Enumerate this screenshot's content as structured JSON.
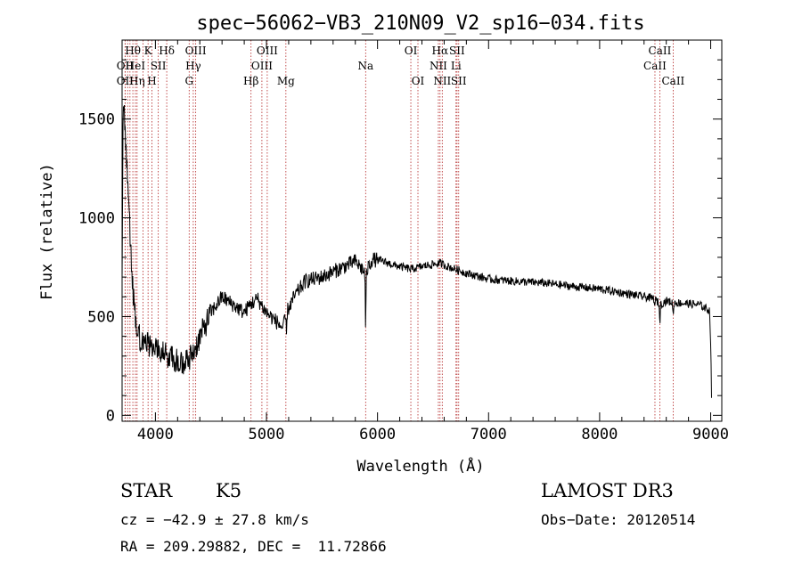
{
  "chart_data": {
    "type": "line",
    "title": "spec−56062−VB3_210N09_V2_sp16−034.fits",
    "xlabel": "Wavelength (Å)",
    "ylabel": "Flux (relative)",
    "xlim": [
      3700,
      9100
    ],
    "ylim": [
      -30,
      1900
    ],
    "x_ticks": [
      4000,
      5000,
      6000,
      7000,
      8000,
      9000
    ],
    "x_tick_labels": [
      "4000",
      "5000",
      "6000",
      "7000",
      "8000",
      "9000"
    ],
    "y_ticks": [
      0,
      500,
      1000,
      1500
    ],
    "y_tick_labels": [
      "0",
      "500",
      "1000",
      "1500"
    ],
    "line_color": "#000000",
    "marker_color": "#b22222",
    "spectrum_anchors": {
      "x": [
        3700,
        3710,
        3730,
        3750,
        3780,
        3800,
        3830,
        3870,
        3920,
        4000,
        4100,
        4200,
        4270,
        4350,
        4420,
        4500,
        4600,
        4700,
        4800,
        4850,
        4920,
        5000,
        5080,
        5150,
        5180,
        5250,
        5350,
        5500,
        5650,
        5800,
        5893,
        5950,
        6050,
        6150,
        6300,
        6450,
        6563,
        6650,
        6800,
        7000,
        7200,
        7500,
        7800,
        8000,
        8200,
        8400,
        8500,
        8542,
        8600,
        8662,
        8700,
        8900,
        8990,
        9000,
        9010
      ],
      "y": [
        700,
        1650,
        1400,
        1200,
        800,
        600,
        450,
        380,
        360,
        340,
        300,
        280,
        260,
        330,
        420,
        520,
        600,
        560,
        520,
        560,
        590,
        520,
        480,
        440,
        520,
        600,
        680,
        700,
        740,
        780,
        720,
        790,
        780,
        760,
        740,
        760,
        770,
        750,
        720,
        690,
        680,
        670,
        650,
        640,
        620,
        600,
        590,
        560,
        580,
        570,
        570,
        560,
        530,
        380,
        30
      ]
    },
    "absorption_dips": [
      {
        "x": 5893,
        "depth": 270
      },
      {
        "x": 5180,
        "depth": 120
      },
      {
        "x": 8542,
        "depth": 90
      },
      {
        "x": 8662,
        "depth": 70
      },
      {
        "x": 8498,
        "depth": 40
      }
    ],
    "noise_amplitude": 30,
    "line_markers": [
      {
        "wavelength": 3727,
        "label": "OII",
        "row": 1
      },
      {
        "wavelength": 3727,
        "label": "OII",
        "row": 2
      },
      {
        "wavelength": 3750,
        "label": "",
        "row": 0
      },
      {
        "wavelength": 3771,
        "label": "",
        "row": 0
      },
      {
        "wavelength": 3797,
        "label": "Hθ",
        "row": 0
      },
      {
        "wavelength": 3820,
        "label": "HeI",
        "row": 1
      },
      {
        "wavelength": 3835,
        "label": "Hη",
        "row": 2
      },
      {
        "wavelength": 3889,
        "label": "",
        "row": 0
      },
      {
        "wavelength": 3934,
        "label": "K",
        "row": 0
      },
      {
        "wavelength": 3969,
        "label": "H",
        "row": 2
      },
      {
        "wavelength": 4026,
        "label": "SII",
        "row": 1
      },
      {
        "wavelength": 4102,
        "label": "Hδ",
        "row": 0
      },
      {
        "wavelength": 4304,
        "label": "G",
        "row": 2
      },
      {
        "wavelength": 4341,
        "label": "Hγ",
        "row": 1
      },
      {
        "wavelength": 4363,
        "label": "OIII",
        "row": 0
      },
      {
        "wavelength": 4861,
        "label": "Hβ",
        "row": 2
      },
      {
        "wavelength": 4959,
        "label": "OIII",
        "row": 1
      },
      {
        "wavelength": 5007,
        "label": "OIII",
        "row": 0
      },
      {
        "wavelength": 5175,
        "label": "Mg",
        "row": 2
      },
      {
        "wavelength": 5893,
        "label": "Na",
        "row": 1
      },
      {
        "wavelength": 6300,
        "label": "OI",
        "row": 0
      },
      {
        "wavelength": 6364,
        "label": "OI",
        "row": 2
      },
      {
        "wavelength": 6548,
        "label": "NII",
        "row": 1
      },
      {
        "wavelength": 6563,
        "label": "Hα",
        "row": 0
      },
      {
        "wavelength": 6583,
        "label": "NII",
        "row": 2
      },
      {
        "wavelength": 6707,
        "label": "Li",
        "row": 1
      },
      {
        "wavelength": 6716,
        "label": "SII",
        "row": 0
      },
      {
        "wavelength": 6731,
        "label": "SII",
        "row": 2
      },
      {
        "wavelength": 8498,
        "label": "CaII",
        "row": 1
      },
      {
        "wavelength": 8542,
        "label": "CaII",
        "row": 0
      },
      {
        "wavelength": 8662,
        "label": "CaII",
        "row": 2
      }
    ]
  },
  "info": {
    "object_class": "STAR",
    "subclass": "K5",
    "redshift_line": "cz = −42.9 ± 27.8 km/s",
    "coords_line": "RA = 209.29882, DEC =  11.72866",
    "survey": "LAMOST DR3",
    "obs_date": "Obs−Date: 20120514"
  }
}
